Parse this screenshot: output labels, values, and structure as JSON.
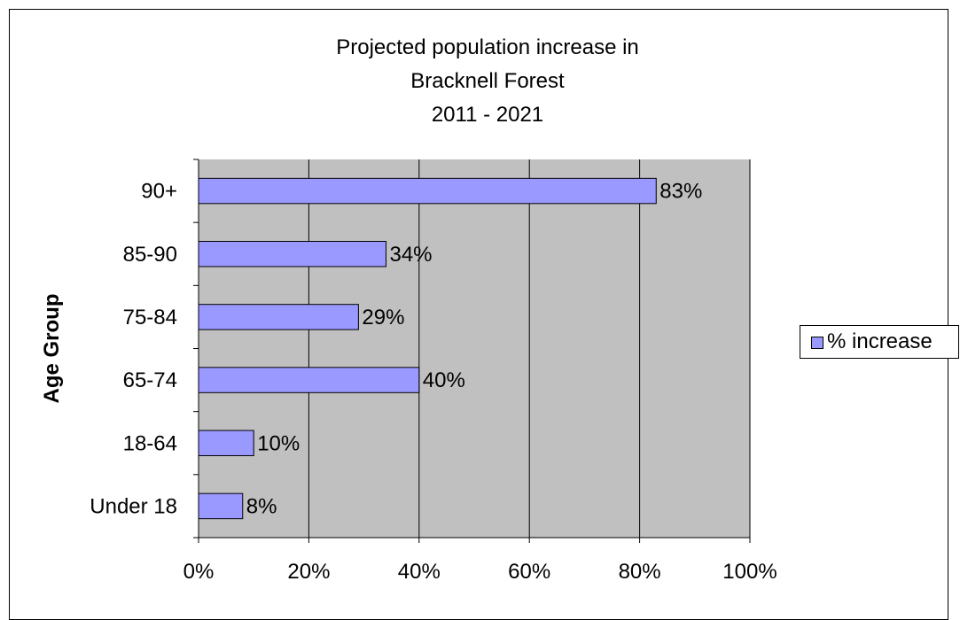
{
  "chart_data": {
    "type": "bar",
    "orientation": "horizontal",
    "title_lines": [
      "Projected population increase in",
      "Bracknell Forest",
      "2011 - 2021"
    ],
    "categories": [
      "Under 18",
      "18-64",
      "65-74",
      "75-84",
      "85-90",
      "90+"
    ],
    "series": [
      {
        "name": "% increase",
        "values": [
          8,
          10,
          40,
          29,
          34,
          83
        ],
        "color": "#9999ff"
      }
    ],
    "data_labels": [
      "8%",
      "10%",
      "40%",
      "29%",
      "34%",
      "83%"
    ],
    "xlabel": "",
    "ylabel": "Age Group",
    "xlim": [
      0,
      100
    ],
    "xticks": [
      0,
      20,
      40,
      60,
      80,
      100
    ],
    "xtick_labels": [
      "0%",
      "20%",
      "40%",
      "60%",
      "80%",
      "100%"
    ],
    "grid": true,
    "plot_background": "#c0c0c0",
    "legend_position": "right"
  }
}
